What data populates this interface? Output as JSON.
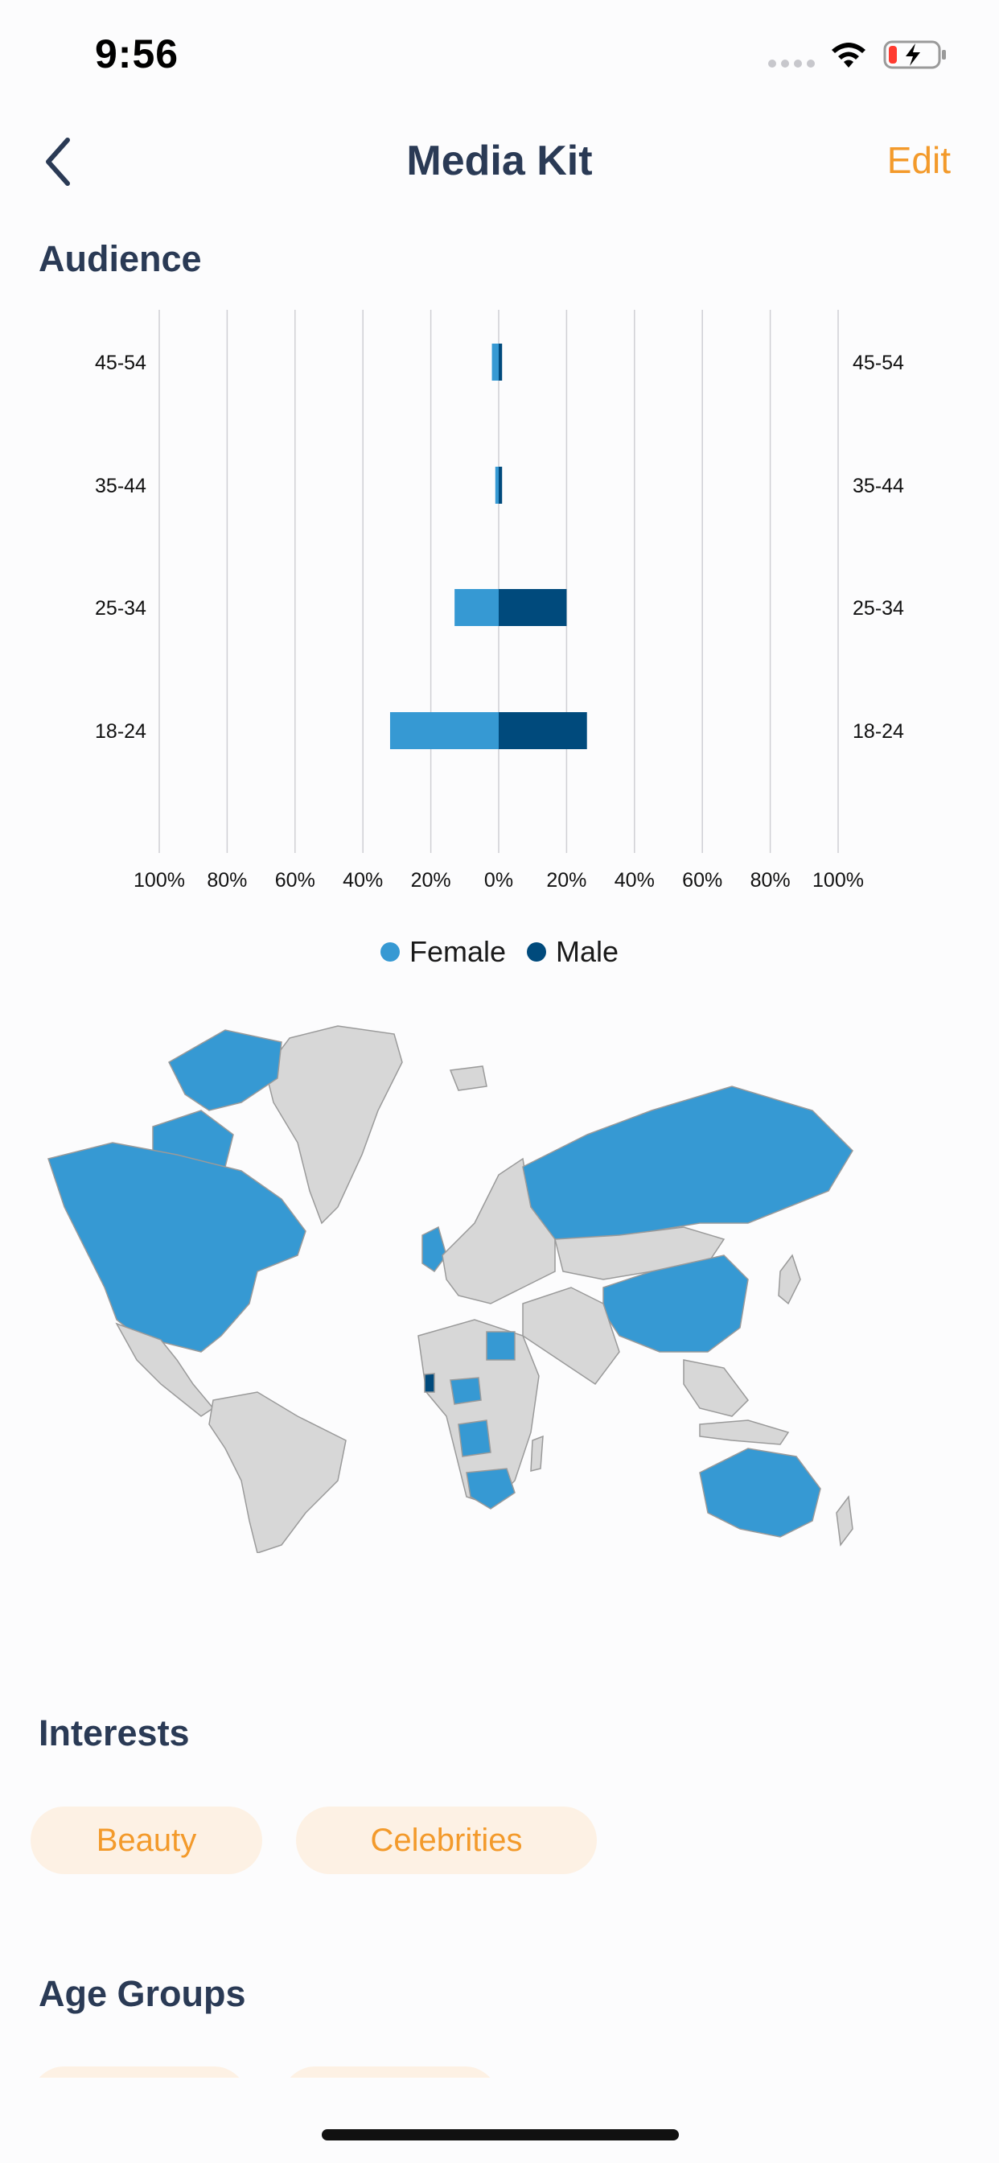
{
  "status": {
    "time": "9:56"
  },
  "nav": {
    "title": "Media Kit",
    "edit_label": "Edit"
  },
  "sections": {
    "audience": "Audience",
    "interests": "Interests",
    "age_groups": "Age Groups"
  },
  "colors": {
    "female": "#3699d3",
    "male": "#004a7c",
    "accent": "#f39a2b",
    "map_land": "#d7d7d7",
    "map_highlight": "#3699d3"
  },
  "chart_data": {
    "type": "bar",
    "orientation": "horizontal-diverging",
    "categories": [
      "45-54",
      "35-44",
      "25-34",
      "18-24"
    ],
    "series": [
      {
        "name": "Female",
        "values": [
          2,
          1,
          13,
          32
        ]
      },
      {
        "name": "Male",
        "values": [
          1,
          1,
          20,
          26
        ]
      }
    ],
    "x_tick_labels": [
      "100%",
      "80%",
      "60%",
      "40%",
      "20%",
      "0%",
      "20%",
      "40%",
      "60%",
      "80%",
      "100%"
    ],
    "xlim": [
      -100,
      100
    ],
    "grid": true,
    "legend": "bottom-center"
  },
  "legend": {
    "female": "Female",
    "male": "Male"
  },
  "interests": [
    "Beauty",
    "Celebrities"
  ]
}
